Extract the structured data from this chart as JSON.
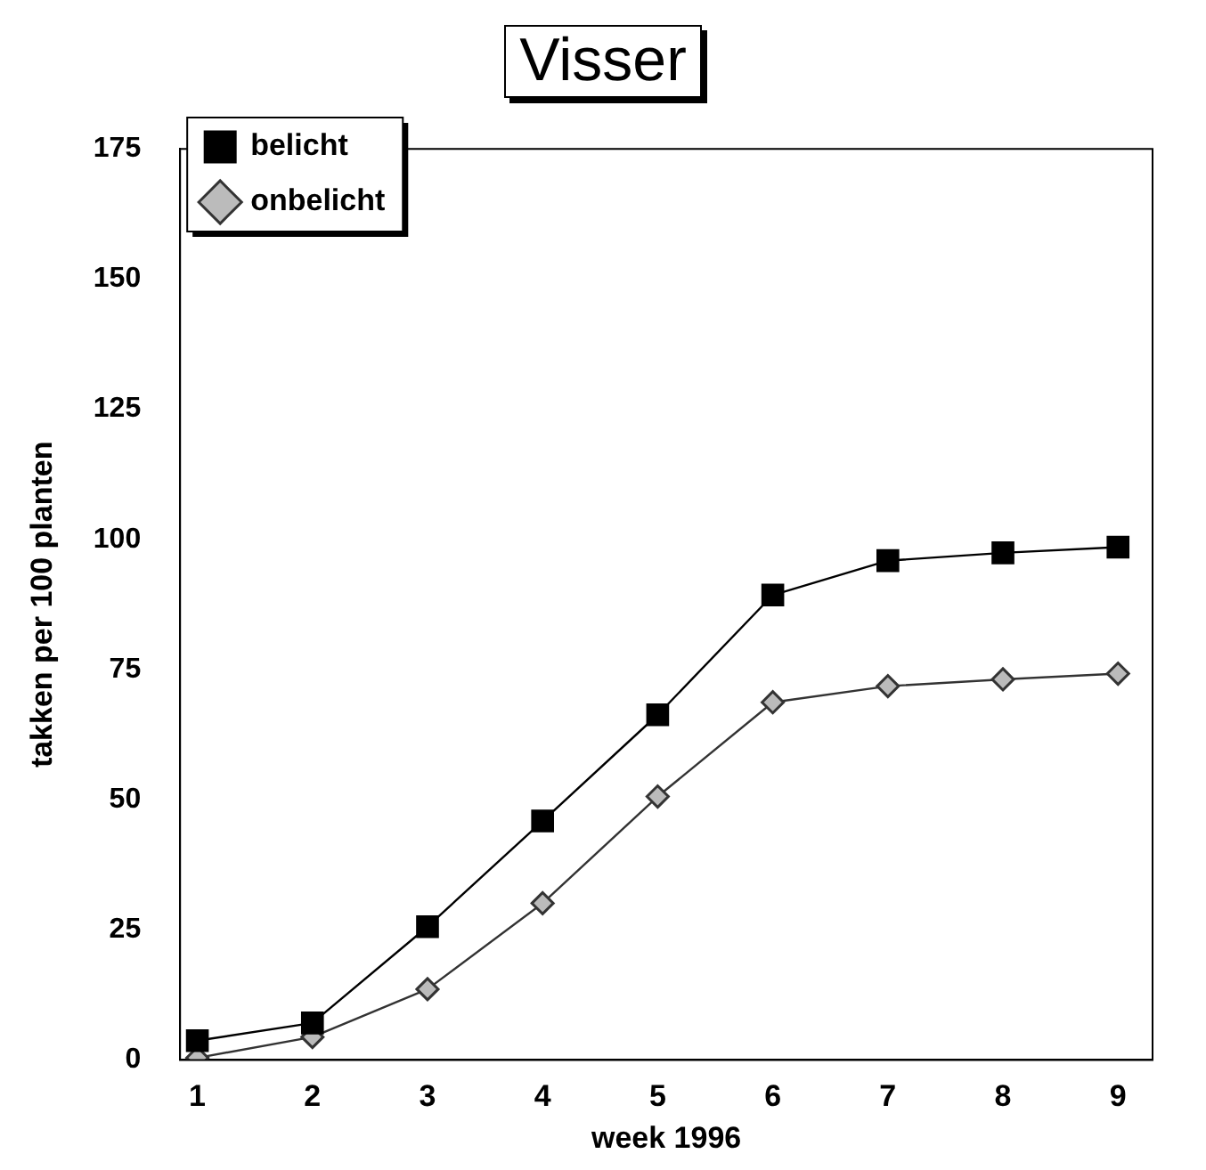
{
  "chart_data": {
    "type": "line",
    "title": "Visser",
    "xlabel": "week 1996",
    "ylabel": "takken per 100 planten",
    "x": [
      1,
      2,
      3,
      4,
      5,
      6,
      7,
      8,
      9
    ],
    "xlim": [
      0.85,
      9.3
    ],
    "xticks": [
      1,
      2,
      3,
      4,
      5,
      6,
      7,
      8,
      9
    ],
    "ylim": [
      0,
      175
    ],
    "yticks": [
      0,
      25,
      50,
      75,
      100,
      125,
      150,
      175
    ],
    "grid": false,
    "legend": "top left",
    "line_style": "solid",
    "series": [
      {
        "name": "belicht",
        "color": "#000000",
        "marker": "square",
        "values": [
          3.7,
          7.1,
          25.6,
          45.9,
          66.3,
          89.3,
          95.9,
          97.4,
          98.5
        ]
      },
      {
        "name": "onbelicht",
        "color": "#333333",
        "marker": "diamond",
        "values": [
          0.4,
          4.4,
          13.6,
          30.1,
          50.6,
          68.7,
          71.8,
          73.1,
          74.2
        ]
      }
    ]
  }
}
